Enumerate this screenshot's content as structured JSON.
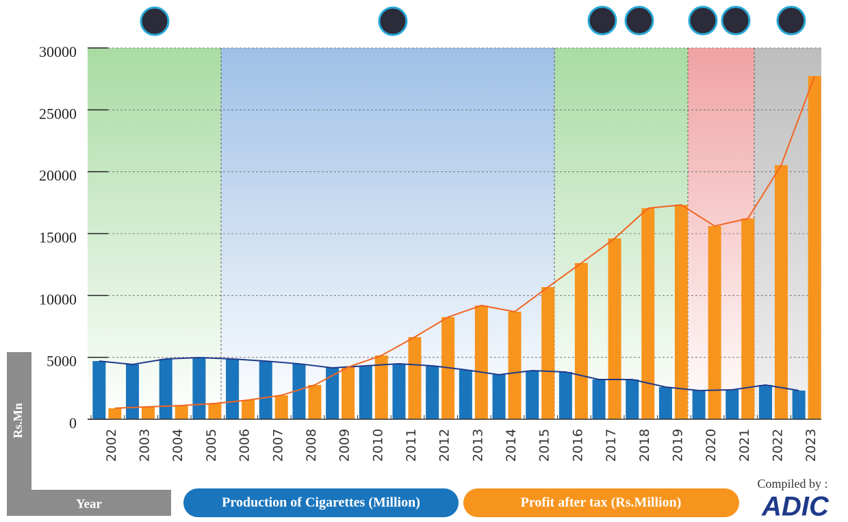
{
  "chart_data": {
    "type": "bar",
    "xlabel": "Year",
    "ylabel": "Rs.Mn",
    "categories": [
      "2002",
      "2003",
      "2004",
      "2005",
      "2006",
      "2007",
      "2008",
      "2009",
      "2010",
      "2011",
      "2012",
      "2013",
      "2014",
      "2015",
      "2016",
      "2017",
      "2018",
      "2019",
      "2020",
      "2021",
      "2022",
      "2023"
    ],
    "series": [
      {
        "name": "Production of Cigarettes (Million)",
        "color": "#1a75bc",
        "line_color": "#1f3a8a",
        "values": [
          4700,
          4430,
          4870,
          4980,
          4870,
          4700,
          4480,
          4150,
          4320,
          4480,
          4320,
          3990,
          3600,
          3930,
          3820,
          3210,
          3210,
          2600,
          2320,
          2380,
          2770,
          2320
        ]
      },
      {
        "name": "Profit after tax (Rs.Million)",
        "color": "#f7941d",
        "line_color": "#f26522",
        "values": [
          890,
          1000,
          1110,
          1270,
          1550,
          1940,
          2770,
          4210,
          5150,
          6640,
          8250,
          9190,
          8690,
          10680,
          12620,
          14610,
          17050,
          17320,
          15610,
          16220,
          20530,
          27730
        ]
      }
    ],
    "ylim": [
      0,
      30000
    ],
    "yticks": [
      0,
      5000,
      10000,
      15000,
      20000,
      25000,
      30000
    ],
    "grid": true
  },
  "credit": "Compiled by :",
  "logo": "ADIC"
}
